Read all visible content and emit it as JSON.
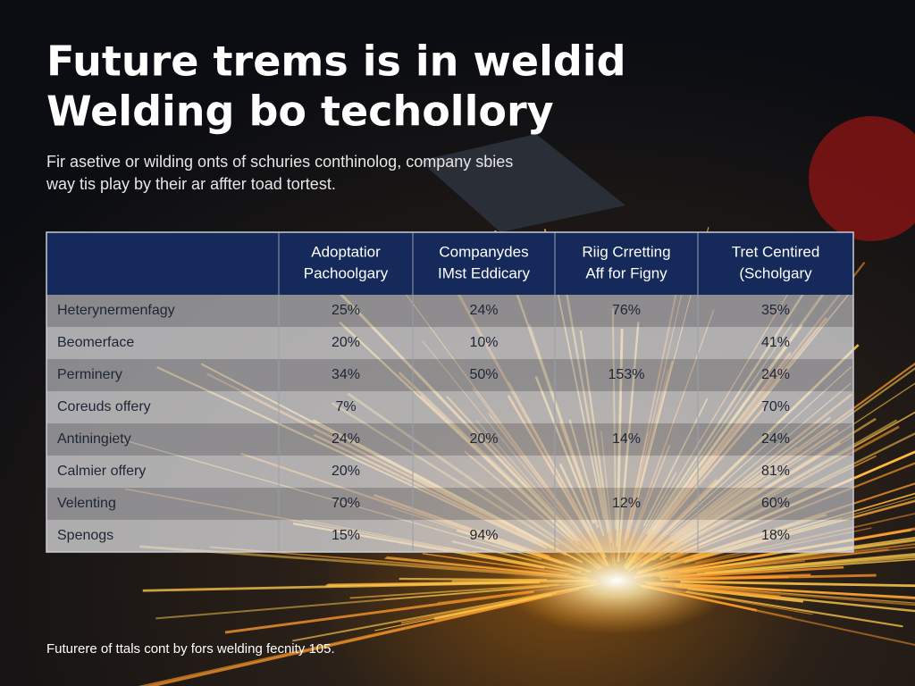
{
  "header": {
    "title": [
      "Future trems is in weldid",
      "Welding bo techollory"
    ],
    "subtitle": [
      "Fir asetive or wilding onts of schuries conthinolog, company sbies",
      "way tis play by their ar affter toad tortest."
    ]
  },
  "table": {
    "columns": [
      [
        "Adoptatior",
        "Pachoolgary"
      ],
      [
        "Companydes",
        "IMst Eddicary"
      ],
      [
        "Riig Crretting",
        "Aff for Figny"
      ],
      [
        "Tret Centired",
        "(Scholgary"
      ]
    ],
    "rows": [
      [
        "Heterynermenfagy",
        "25%",
        "24%",
        "76%",
        "35%"
      ],
      [
        "Beomerface",
        "20%",
        "10%",
        null,
        "41%"
      ],
      [
        "Perminery",
        "34%",
        "50%",
        "153%",
        "24%"
      ],
      [
        "Coreuds offery",
        "7%",
        null,
        null,
        "70%"
      ],
      [
        "Antiningiety",
        "24%",
        "20%",
        "14%",
        "24%"
      ],
      [
        "Calmier offery",
        "20%",
        null,
        null,
        "81%"
      ],
      [
        "Velenting",
        "70%",
        null,
        "12%",
        "60%"
      ],
      [
        "Spenogs",
        "15%",
        "94%",
        null,
        "18%"
      ]
    ]
  },
  "footer": "Futurere of ttals cont by fors welding fecnity 105."
}
